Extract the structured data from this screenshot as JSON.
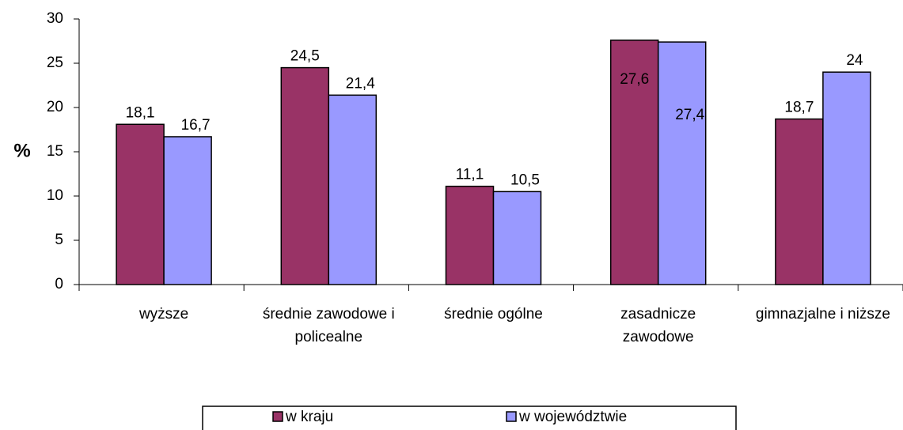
{
  "chart_data": {
    "type": "bar",
    "categories": [
      "wyższe",
      "średnie zawodowe i policealne",
      "średnie ogólne",
      "zasadnicze zawodowe",
      "gimnazjalne i niższe"
    ],
    "series": [
      {
        "name": "w kraju",
        "color": "#993366",
        "values": [
          18.1,
          24.5,
          11.1,
          27.6,
          18.7
        ],
        "value_labels": [
          "18,1",
          "24,5",
          "11,1",
          "27,6",
          "18,7"
        ]
      },
      {
        "name": "w województwie",
        "color": "#9999ff",
        "values": [
          16.7,
          21.4,
          10.5,
          27.4,
          24
        ],
        "value_labels": [
          "16,7",
          "21,4",
          "10,5",
          "27,4",
          "24"
        ]
      }
    ],
    "y_label": "%",
    "ylim": [
      0,
      30
    ],
    "yticks": [
      0,
      5,
      10,
      15,
      20,
      25,
      30
    ],
    "legend": "bottom"
  }
}
